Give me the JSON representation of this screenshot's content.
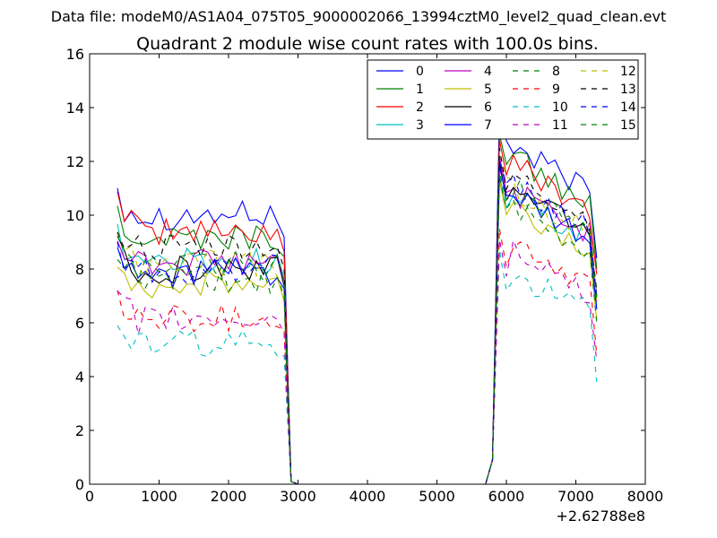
{
  "header": "Data file: modeM0/AS1A04_075T05_9000002066_13994cztM0_level2_quad_clean.evt",
  "chart_data": {
    "type": "line",
    "title": "Quadrant 2 module wise count rates with 100.0s bins.",
    "xlabel": "",
    "ylabel": "",
    "x_offset_label": "+2.62788e8",
    "xlim": [
      0,
      8000
    ],
    "ylim": [
      0,
      16
    ],
    "xticks": [
      "0",
      "1000",
      "2000",
      "3000",
      "4000",
      "5000",
      "6000",
      "7000",
      "8000"
    ],
    "yticks": [
      "0",
      "2",
      "4",
      "6",
      "8",
      "10",
      "12",
      "14",
      "16"
    ],
    "grid": false,
    "legend_position": "top-right",
    "x_segment1": [
      400,
      500,
      600,
      700,
      800,
      900,
      1000,
      1100,
      1200,
      1300,
      1400,
      1500,
      1600,
      1700,
      1800,
      1900,
      2000,
      2100,
      2200,
      2300,
      2400,
      2500,
      2600,
      2700,
      2800,
      2850,
      2900
    ],
    "x_gap": [
      3000,
      5700
    ],
    "x_segment2": [
      5800,
      5900,
      6000,
      6100,
      6200,
      6300,
      6400,
      6500,
      6600,
      6700,
      6800,
      6900,
      7000,
      7100,
      7200,
      7300
    ],
    "series": [
      {
        "name": "0",
        "color": "#0000ff",
        "dash": "solid",
        "base1": 10.0,
        "base2": 11.2,
        "peak": 13.9
      },
      {
        "name": "1",
        "color": "#008000",
        "dash": "solid",
        "base1": 9.2,
        "base2": 10.8,
        "peak": 13.0
      },
      {
        "name": "2",
        "color": "#ff0000",
        "dash": "solid",
        "base1": 9.4,
        "base2": 10.6,
        "peak": 12.8
      },
      {
        "name": "3",
        "color": "#00bfbf",
        "dash": "solid",
        "base1": 8.3,
        "base2": 9.4,
        "peak": 11.5
      },
      {
        "name": "4",
        "color": "#bf00bf",
        "dash": "solid",
        "base1": 8.2,
        "base2": 9.6,
        "peak": 12.2
      },
      {
        "name": "5",
        "color": "#bfbf00",
        "dash": "solid",
        "base1": 7.4,
        "base2": 8.9,
        "peak": 11.3
      },
      {
        "name": "6",
        "color": "#000000",
        "dash": "solid",
        "base1": 8.0,
        "base2": 9.8,
        "peak": 12.0
      },
      {
        "name": "7",
        "color": "#0000ff",
        "dash": "solid",
        "base1": 7.9,
        "base2": 9.3,
        "peak": 11.8
      },
      {
        "name": "8",
        "color": "#008000",
        "dash": "dash",
        "base1": 7.6,
        "base2": 8.8,
        "peak": 11.4
      },
      {
        "name": "9",
        "color": "#ff0000",
        "dash": "dash",
        "base1": 6.2,
        "base2": 7.6,
        "peak": 9.5
      },
      {
        "name": "10",
        "color": "#00bfbf",
        "dash": "dash",
        "base1": 5.2,
        "base2": 6.6,
        "peak": 8.7
      },
      {
        "name": "11",
        "color": "#bf00bf",
        "dash": "dash",
        "base1": 6.1,
        "base2": 7.4,
        "peak": 9.1
      },
      {
        "name": "12",
        "color": "#bfbf00",
        "dash": "dash",
        "base1": 8.2,
        "base2": 9.6,
        "peak": 12.3
      },
      {
        "name": "13",
        "color": "#000000",
        "dash": "dash",
        "base1": 8.7,
        "base2": 10.0,
        "peak": 12.5
      },
      {
        "name": "14",
        "color": "#0000ff",
        "dash": "dash",
        "base1": 8.0,
        "base2": 9.8,
        "peak": 12.0
      },
      {
        "name": "15",
        "color": "#008000",
        "dash": "dash",
        "base1": 8.1,
        "base2": 9.7,
        "peak": 11.6
      }
    ]
  }
}
